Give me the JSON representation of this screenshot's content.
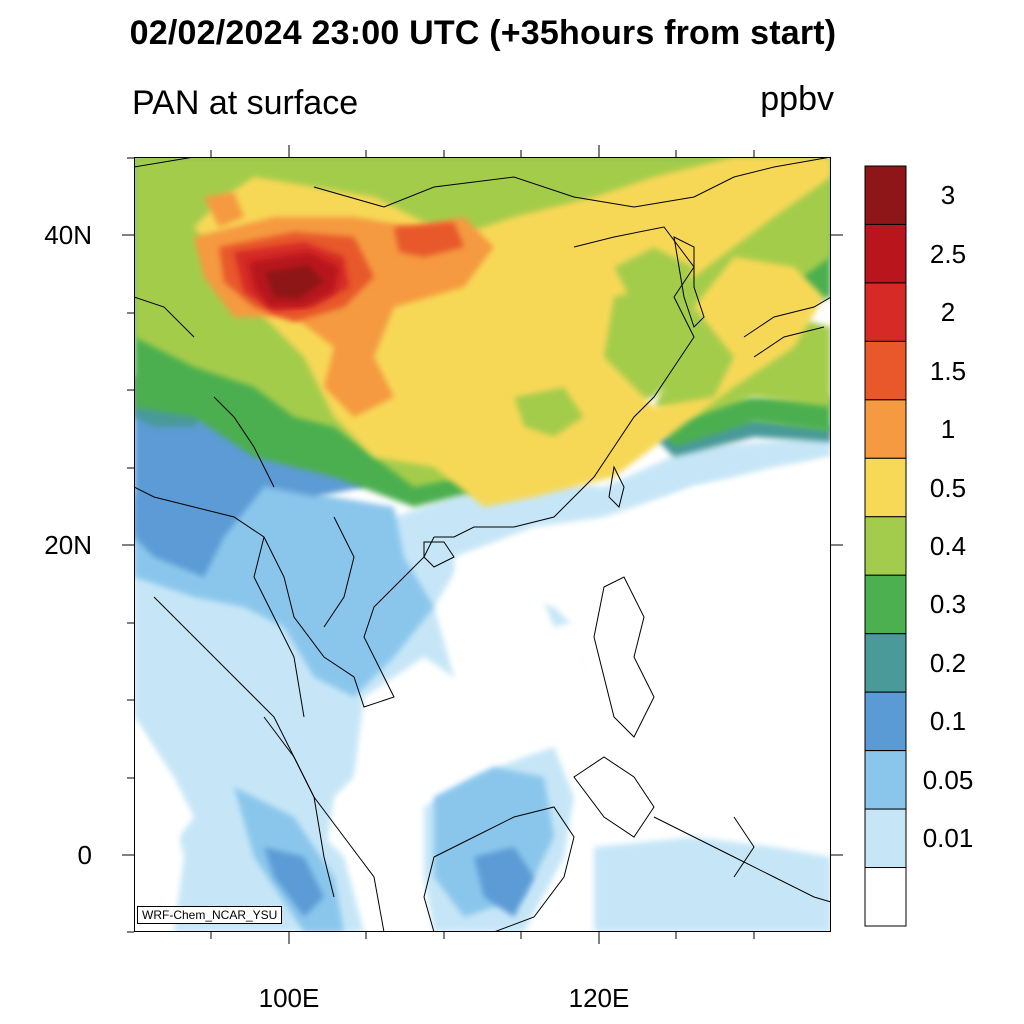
{
  "title": "02/02/2024 23:00 UTC (+35hours from start)",
  "subtitle": "PAN at surface",
  "units": "ppbv",
  "model_label": "WRF-Chem_NCAR_YSU",
  "axes": {
    "lat_labels": [
      "40N",
      "20N",
      "0"
    ],
    "lon_labels": [
      "100E",
      "120E"
    ]
  },
  "colorbar": {
    "labels": [
      "3",
      "2.5",
      "2",
      "1.5",
      "1",
      "0.5",
      "0.4",
      "0.3",
      "0.2",
      "0.1",
      "0.05",
      "0.01"
    ],
    "colors": [
      "#8e1618",
      "#b8151c",
      "#d52a25",
      "#e8582b",
      "#f59a40",
      "#f7d857",
      "#a4cc4c",
      "#4caf50",
      "#4a9a9a",
      "#5b9bd5",
      "#8ac6ec",
      "#c6e6f7",
      "#ffffff"
    ]
  },
  "legend_colors": {
    "border": "#000000",
    "coast": "#000000"
  }
}
